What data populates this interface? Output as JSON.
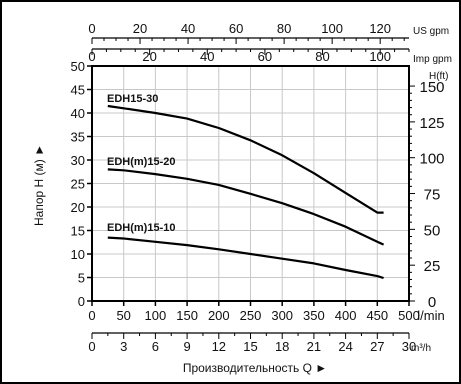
{
  "chart_data": {
    "type": "line",
    "title": "",
    "xlabel": "Производительность Q ►",
    "ylabel": "Напор H (м) ►",
    "ylim": [
      0,
      50
    ],
    "y_ticks": [
      0,
      5,
      10,
      15,
      20,
      25,
      30,
      35,
      40,
      45,
      50
    ],
    "grid": true,
    "axes": {
      "bottom_primary": {
        "unit": "l/min",
        "range": [
          0,
          500
        ],
        "ticks": [
          0,
          50,
          100,
          150,
          200,
          250,
          300,
          350,
          400,
          450,
          500
        ]
      },
      "bottom_secondary": {
        "unit": "m³/h",
        "range": [
          0,
          30
        ],
        "ticks": [
          0,
          3,
          6,
          9,
          12,
          15,
          18,
          21,
          24,
          27,
          30
        ]
      },
      "top_primary": {
        "unit": "US gpm",
        "range": [
          0,
          132
        ],
        "ticks": [
          0,
          20,
          40,
          60,
          80,
          100,
          120
        ]
      },
      "top_secondary": {
        "unit": "Imp gpm",
        "range": [
          0,
          110
        ],
        "ticks": [
          0,
          20,
          40,
          60,
          80,
          100
        ]
      },
      "right": {
        "unit": "H(ft)",
        "range": [
          0,
          164
        ],
        "ticks": [
          0,
          25,
          50,
          75,
          100,
          125,
          150
        ]
      }
    },
    "series": [
      {
        "name": "EDH15-30",
        "x": [
          25,
          50,
          100,
          150,
          200,
          250,
          300,
          350,
          400,
          450,
          460
        ],
        "y": [
          41.5,
          41,
          40,
          38.8,
          36.8,
          34.2,
          31,
          27.2,
          23,
          18.8,
          18.8
        ]
      },
      {
        "name": "EDH(m)15-20",
        "x": [
          25,
          50,
          100,
          150,
          200,
          250,
          300,
          350,
          400,
          450,
          460
        ],
        "y": [
          28,
          27.8,
          27,
          26,
          24.7,
          22.8,
          20.8,
          18.5,
          15.8,
          12.6,
          12
        ]
      },
      {
        "name": "EDH(m)15-10",
        "x": [
          25,
          50,
          100,
          150,
          200,
          250,
          300,
          350,
          400,
          450,
          460
        ],
        "y": [
          13.5,
          13.3,
          12.6,
          11.9,
          11,
          10,
          9,
          8,
          6.6,
          5.3,
          4.9
        ]
      }
    ]
  }
}
